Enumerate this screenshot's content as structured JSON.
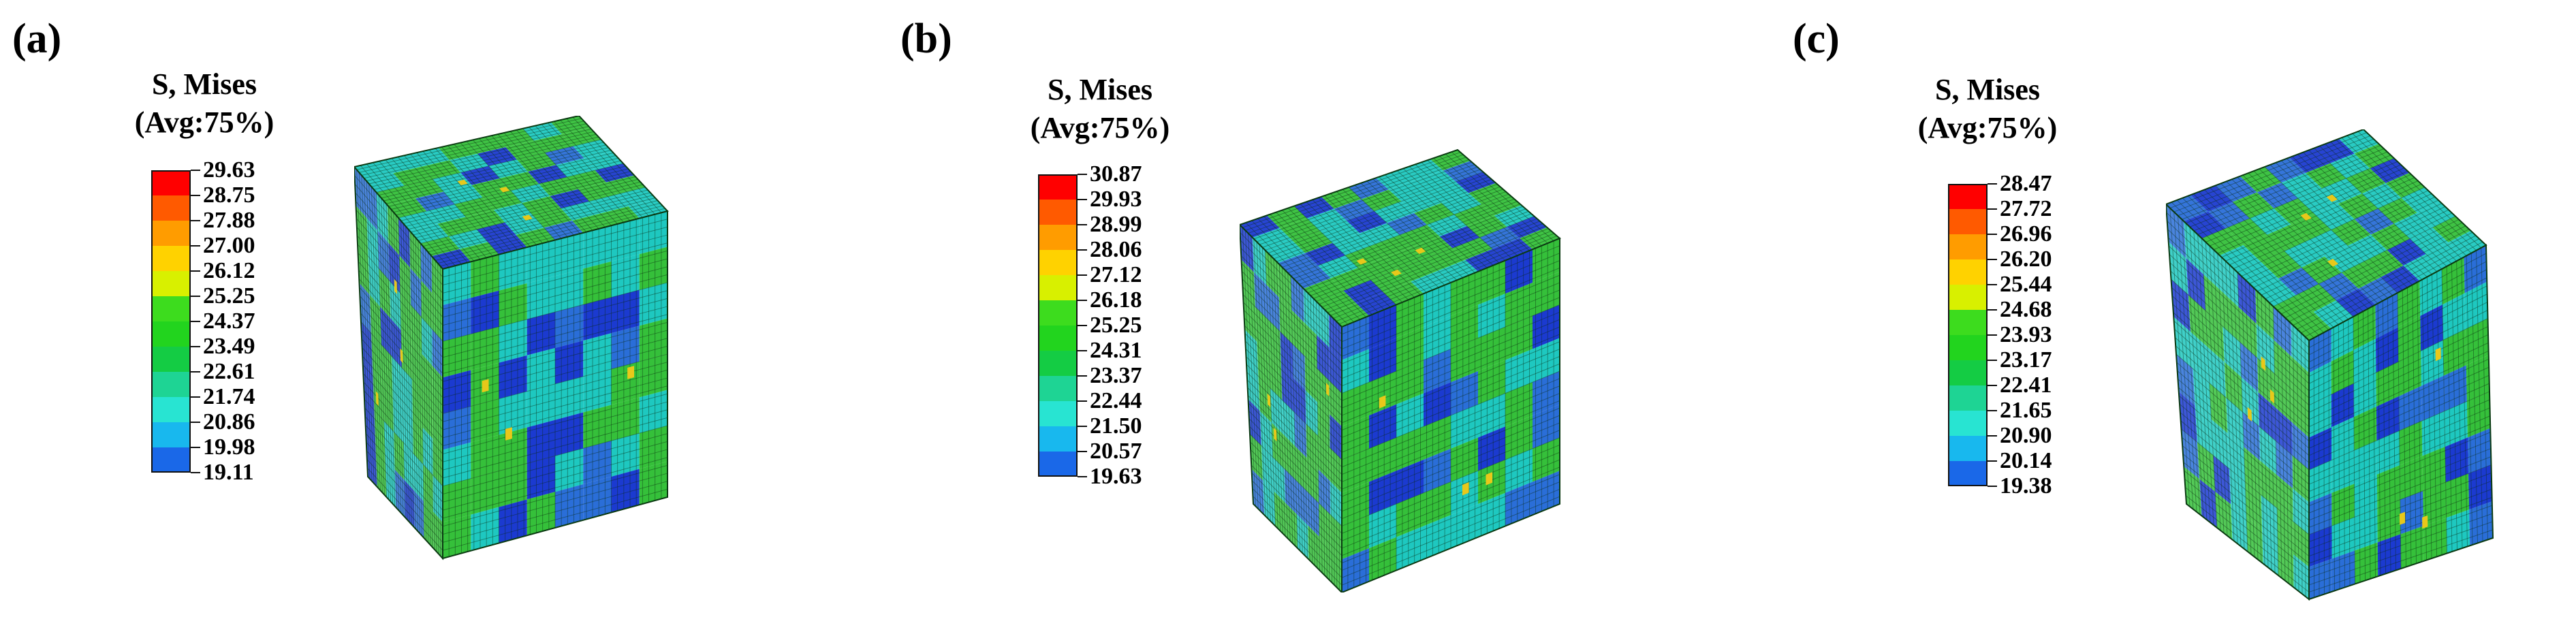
{
  "panels": [
    {
      "label": "(a)",
      "legend_title_line1": "S, Mises",
      "legend_title_line2": "(Avg:75%)",
      "legend_values": [
        "29.63",
        "28.75",
        "27.88",
        "27.00",
        "26.12",
        "25.25",
        "24.37",
        "23.49",
        "22.61",
        "21.74",
        "20.86",
        "19.98",
        "19.11"
      ]
    },
    {
      "label": "(b)",
      "legend_title_line1": "S, Mises",
      "legend_title_line2": "(Avg:75%)",
      "legend_values": [
        "30.87",
        "29.93",
        "28.99",
        "28.06",
        "27.12",
        "26.18",
        "25.25",
        "24.31",
        "23.37",
        "22.44",
        "21.50",
        "20.57",
        "19.63"
      ]
    },
    {
      "label": "(c)",
      "legend_title_line1": "S, Mises",
      "legend_title_line2": "(Avg:75%)",
      "legend_values": [
        "28.47",
        "27.72",
        "26.96",
        "26.20",
        "25.44",
        "24.68",
        "23.93",
        "23.17",
        "22.41",
        "21.65",
        "20.90",
        "20.14",
        "19.38"
      ]
    }
  ],
  "colormap": [
    "#ff0000",
    "#ff5a00",
    "#ff9c00",
    "#ffd200",
    "#d8f000",
    "#3ddc1e",
    "#22d41e",
    "#14cc44",
    "#1ed494",
    "#28e4d2",
    "#18b8ee",
    "#1a68e8",
    "#1212e6"
  ],
  "mesh_colors": {
    "base": "#35c03a",
    "cyan": "#1ec8c0",
    "blue": "#2a6ed8",
    "dark_blue": "#1b3ad0",
    "hot": "#e8c81a",
    "grid_line": "#0a2a10"
  }
}
